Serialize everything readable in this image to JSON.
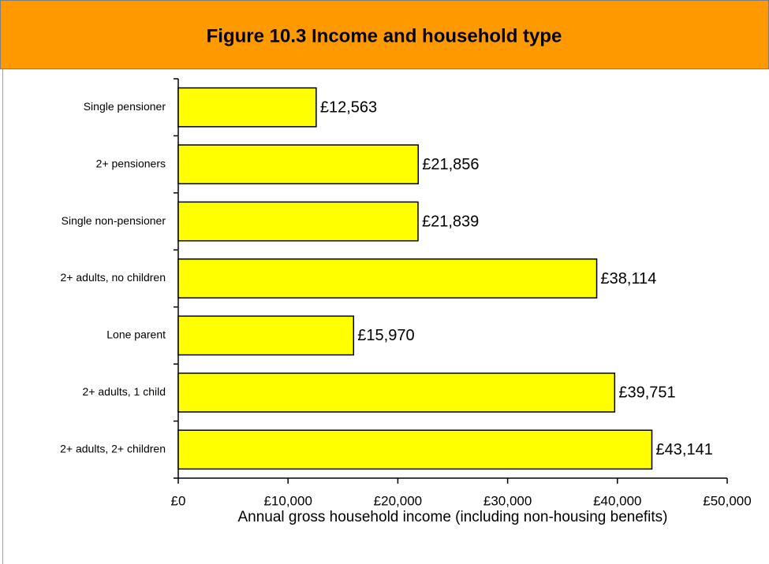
{
  "chart_data": {
    "type": "bar",
    "orientation": "horizontal",
    "title": "Figure 10.3 Income and household type",
    "xlabel": "Annual gross household income (including non-housing benefits)",
    "categories": [
      "Single pensioner",
      "2+ pensioners",
      "Single non-pensioner",
      "2+ adults, no children",
      "Lone parent",
      "2+ adults, 1 child",
      "2+ adults, 2+ children"
    ],
    "values": [
      12563,
      21856,
      21839,
      38114,
      15970,
      39751,
      43141
    ],
    "value_labels": [
      "£12,563",
      "£21,856",
      "£21,839",
      "£38,114",
      "£15,970",
      "£39,751",
      "£43,141"
    ],
    "color": "#ffff00",
    "xlim": [
      0,
      50000
    ],
    "xticks": [
      {
        "value": 0,
        "label": "£0"
      },
      {
        "value": 10000,
        "label": "£10,000"
      },
      {
        "value": 20000,
        "label": "£20,000"
      },
      {
        "value": 30000,
        "label": "£30,000"
      },
      {
        "value": 40000,
        "label": "£40,000"
      },
      {
        "value": 50000,
        "label": "£50,000"
      }
    ],
    "grid": false
  }
}
